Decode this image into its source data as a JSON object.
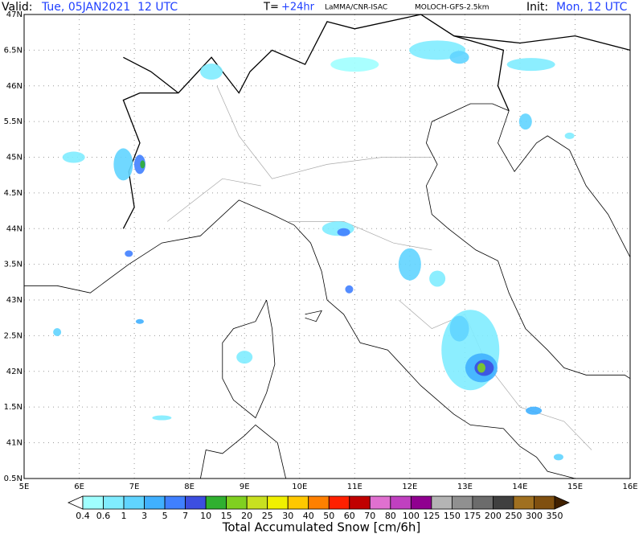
{
  "header": {
    "valid_label": "Valid:",
    "valid_time": "Tue, 05JAN2021  12 UTC",
    "lead_label": "T=",
    "lead_time": "+24hr",
    "source": "LaMMA/CNR-ISAC",
    "model": "MOLOCH-GFS-2.5km",
    "init_label": "Init:",
    "init_time": "Mon, 12 UTC"
  },
  "map": {
    "lat_labels": [
      "47N",
      "6.5N",
      "46N",
      "5.5N",
      "45N",
      "4.5N",
      "44N",
      "3.5N",
      "43N",
      "2.5N",
      "42N",
      "1.5N",
      "41N",
      "0.5N"
    ],
    "lon_labels": [
      "5E",
      "6E",
      "7E",
      "8E",
      "9E",
      "10E",
      "11E",
      "12E",
      "13E",
      "14E",
      "15E",
      "16E"
    ]
  },
  "colorbar": {
    "labels": [
      "0.4",
      "0.6",
      "1",
      "3",
      "5",
      "7",
      "10",
      "15",
      "20",
      "25",
      "30",
      "40",
      "50",
      "60",
      "70",
      "80",
      "100",
      "125",
      "150",
      "175",
      "200",
      "250",
      "300",
      "350"
    ],
    "colors": [
      "#a0ffff",
      "#80ecff",
      "#60d4ff",
      "#40b0ff",
      "#4080ff",
      "#3c4ee0",
      "#30b030",
      "#80d020",
      "#c8e020",
      "#f0f000",
      "#ffc800",
      "#ff8000",
      "#ff2000",
      "#c00000",
      "#e070d0",
      "#c040c0",
      "#900090",
      "#b4b4b4",
      "#909090",
      "#6c6c6c",
      "#404040",
      "#a07020",
      "#805010",
      "#603000"
    ],
    "under_color": "#ffffff",
    "over_color": "#402000",
    "title": "Total Accumulated Snow [cm/6h]"
  }
}
